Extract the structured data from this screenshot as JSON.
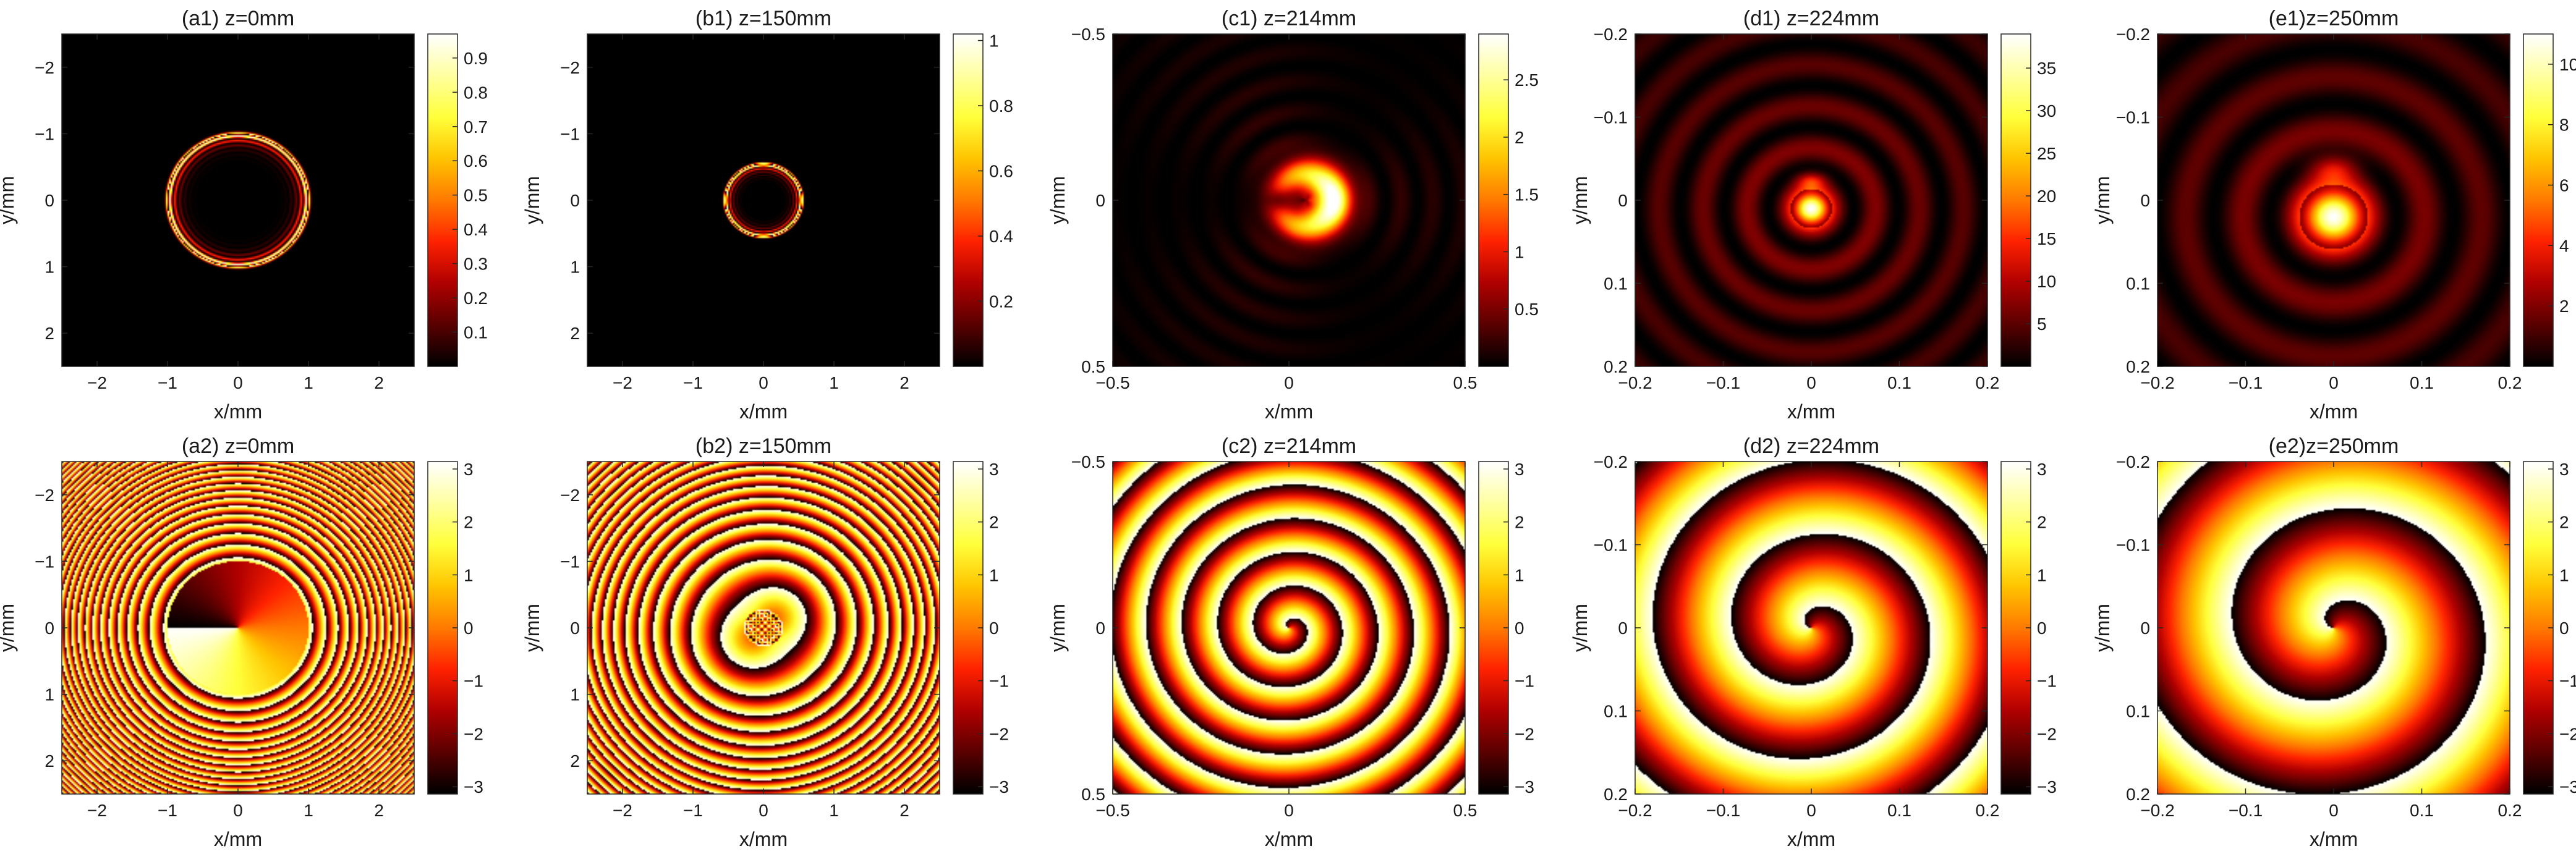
{
  "colors": {
    "colormap_hot": [
      "#000000",
      "#5a0000",
      "#b00000",
      "#ff2200",
      "#ff7a00",
      "#ffc400",
      "#ffff3a",
      "#ffffa0",
      "#ffffff"
    ],
    "axis": "#262626",
    "background": "#ffffff"
  },
  "chart_data": [
    {
      "type": "heatmap",
      "id": "a1",
      "quantity": "intensity",
      "title": "(a1) z=0mm",
      "xlabel": "x/mm",
      "ylabel": "y/mm",
      "xlim": [
        -2.5,
        2.5
      ],
      "ylim": [
        2.5,
        -2.5
      ],
      "xticks": [
        -2,
        -1,
        0,
        1,
        2
      ],
      "yticks": [
        -2,
        -1,
        0,
        1,
        2
      ],
      "colorbar": {
        "range": [
          0,
          0.97
        ],
        "ticks": [
          0.1,
          0.2,
          0.3,
          0.4,
          0.5,
          0.6,
          0.7,
          0.8,
          0.9
        ]
      },
      "field": {
        "pattern": "airy_ring",
        "ring_radius": 1.0,
        "ring_center_x": 0.0,
        "ring_center_y": 0.0,
        "inner_ring_spacing": 0.07,
        "ring_count": 6
      }
    },
    {
      "type": "heatmap",
      "id": "b1",
      "quantity": "intensity",
      "title": "(b1) z=150mm",
      "xlabel": "x/mm",
      "ylabel": "y/mm",
      "xlim": [
        -2.5,
        2.5
      ],
      "ylim": [
        2.5,
        -2.5
      ],
      "xticks": [
        -2,
        -1,
        0,
        1,
        2
      ],
      "yticks": [
        -2,
        -1,
        0,
        1,
        2
      ],
      "colorbar": {
        "range": [
          0,
          1.02
        ],
        "ticks": [
          0.2,
          0.4,
          0.6,
          0.8,
          1
        ]
      },
      "field": {
        "pattern": "airy_ring",
        "ring_radius": 0.55,
        "ring_center_x": 0.0,
        "ring_center_y": 0.0,
        "inner_ring_spacing": 0.05,
        "ring_count": 5
      }
    },
    {
      "type": "heatmap",
      "id": "c1",
      "quantity": "intensity",
      "title": "(c1) z=214mm",
      "xlabel": "x/mm",
      "ylabel": "y/mm",
      "xlim": [
        -0.5,
        0.5
      ],
      "ylim": [
        0.5,
        -0.5
      ],
      "xticks": [
        -0.5,
        0,
        0.5
      ],
      "yticks": [
        -0.5,
        0,
        0.5
      ],
      "colorbar": {
        "range": [
          0,
          2.9
        ],
        "ticks": [
          0.5,
          1,
          1.5,
          2,
          2.5
        ]
      },
      "field": {
        "pattern": "crescent",
        "center_x": 0.05,
        "center_y": 0.0,
        "spot_radius": 0.12,
        "fringe_spacing": 0.09
      }
    },
    {
      "type": "heatmap",
      "id": "d1",
      "quantity": "intensity",
      "title": "(d1) z=224mm",
      "xlabel": "x/mm",
      "ylabel": "y/mm",
      "xlim": [
        -0.2,
        0.2
      ],
      "ylim": [
        0.2,
        -0.2
      ],
      "xticks": [
        -0.2,
        -0.1,
        0,
        0.1,
        0.2
      ],
      "yticks": [
        -0.2,
        -0.1,
        0,
        0.1,
        0.2
      ],
      "colorbar": {
        "range": [
          0,
          39
        ],
        "ticks": [
          5,
          10,
          15,
          20,
          25,
          30,
          35
        ]
      },
      "field": {
        "pattern": "focal_spot",
        "center_x": 0.0,
        "center_y": 0.01,
        "spot_radius": 0.018,
        "ring_spacing": 0.05
      }
    },
    {
      "type": "heatmap",
      "id": "e1",
      "quantity": "intensity",
      "title": "(e1)z=250mm",
      "xlabel": "x/mm",
      "ylabel": "y/mm",
      "xlim": [
        -0.2,
        0.2
      ],
      "ylim": [
        0.2,
        -0.2
      ],
      "xticks": [
        -0.2,
        -0.1,
        0,
        0.1,
        0.2
      ],
      "yticks": [
        -0.2,
        -0.1,
        0,
        0.1,
        0.2
      ],
      "colorbar": {
        "range": [
          0,
          11
        ],
        "ticks": [
          2,
          4,
          6,
          8,
          10
        ]
      },
      "field": {
        "pattern": "focal_spot",
        "center_x": 0.0,
        "center_y": 0.02,
        "spot_radius": 0.03,
        "ring_spacing": 0.065
      }
    },
    {
      "type": "heatmap",
      "id": "a2",
      "quantity": "phase",
      "title": "(a2) z=0mm",
      "xlabel": "x/mm",
      "ylabel": "y/mm",
      "xlim": [
        -2.5,
        2.5
      ],
      "ylim": [
        2.5,
        -2.5
      ],
      "xticks": [
        -2,
        -1,
        0,
        1,
        2
      ],
      "yticks": [
        -2,
        -1,
        0,
        1,
        2
      ],
      "colorbar": {
        "range": [
          -3.14,
          3.14
        ],
        "ticks": [
          -3,
          -2,
          -1,
          0,
          1,
          2,
          3
        ]
      },
      "field": {
        "pattern": "vortex_disk_chirp",
        "disk_radius": 1.0,
        "chirp": 14,
        "center_x": 0.0,
        "center_y": 0.0
      }
    },
    {
      "type": "heatmap",
      "id": "b2",
      "quantity": "phase",
      "title": "(b2) z=150mm",
      "xlabel": "x/mm",
      "ylabel": "y/mm",
      "xlim": [
        -2.5,
        2.5
      ],
      "ylim": [
        2.5,
        -2.5
      ],
      "xticks": [
        -2,
        -1,
        0,
        1,
        2
      ],
      "yticks": [
        -2,
        -1,
        0,
        1,
        2
      ],
      "colorbar": {
        "range": [
          -3.14,
          3.14
        ],
        "ticks": [
          -3,
          -2,
          -1,
          0,
          1,
          2,
          3
        ]
      },
      "field": {
        "pattern": "chirp_rings",
        "chirp": 9,
        "inner_radius": 0.55,
        "center_x": 0.0,
        "center_y": 0.0
      }
    },
    {
      "type": "heatmap",
      "id": "c2",
      "quantity": "phase",
      "title": "(c2) z=214mm",
      "xlabel": "x/mm",
      "ylabel": "y/mm",
      "xlim": [
        -0.5,
        0.5
      ],
      "ylim": [
        0.5,
        -0.5
      ],
      "xticks": [
        -0.5,
        0,
        0.5
      ],
      "yticks": [
        -0.5,
        0,
        0.5
      ],
      "colorbar": {
        "range": [
          -3.14,
          3.14
        ],
        "ticks": [
          -3,
          -2,
          -1,
          0,
          1,
          2,
          3
        ]
      },
      "field": {
        "pattern": "spiral",
        "center_x": 0.0,
        "center_y": 0.0,
        "wave_number": 62,
        "charge": 1
      }
    },
    {
      "type": "heatmap",
      "id": "d2",
      "quantity": "phase",
      "title": "(d2) z=224mm",
      "xlabel": "x/mm",
      "ylabel": "y/mm",
      "xlim": [
        -0.2,
        0.2
      ],
      "ylim": [
        0.2,
        -0.2
      ],
      "xticks": [
        -0.2,
        -0.1,
        0,
        0.1,
        0.2
      ],
      "yticks": [
        -0.2,
        -0.1,
        0,
        0.1,
        0.2
      ],
      "colorbar": {
        "range": [
          -3.14,
          3.14
        ],
        "ticks": [
          -3,
          -2,
          -1,
          0,
          1,
          2,
          3
        ]
      },
      "field": {
        "pattern": "spiral",
        "center_x": 0.0,
        "center_y": 0.0,
        "wave_number": 70,
        "charge": 1
      }
    },
    {
      "type": "heatmap",
      "id": "e2",
      "quantity": "phase",
      "title": "(e2)z=250mm",
      "xlabel": "x/mm",
      "ylabel": "y/mm",
      "xlim": [
        -0.2,
        0.2
      ],
      "ylim": [
        0.2,
        -0.2
      ],
      "xticks": [
        -0.2,
        -0.1,
        0,
        0.1,
        0.2
      ],
      "yticks": [
        -0.2,
        -0.1,
        0,
        0.1,
        0.2
      ],
      "colorbar": {
        "range": [
          -3.14,
          3.14
        ],
        "ticks": [
          -3,
          -2,
          -1,
          0,
          1,
          2,
          3
        ]
      },
      "field": {
        "pattern": "spiral",
        "center_x": 0.0,
        "center_y": 0.0,
        "wave_number": 55,
        "charge": 1
      }
    }
  ]
}
